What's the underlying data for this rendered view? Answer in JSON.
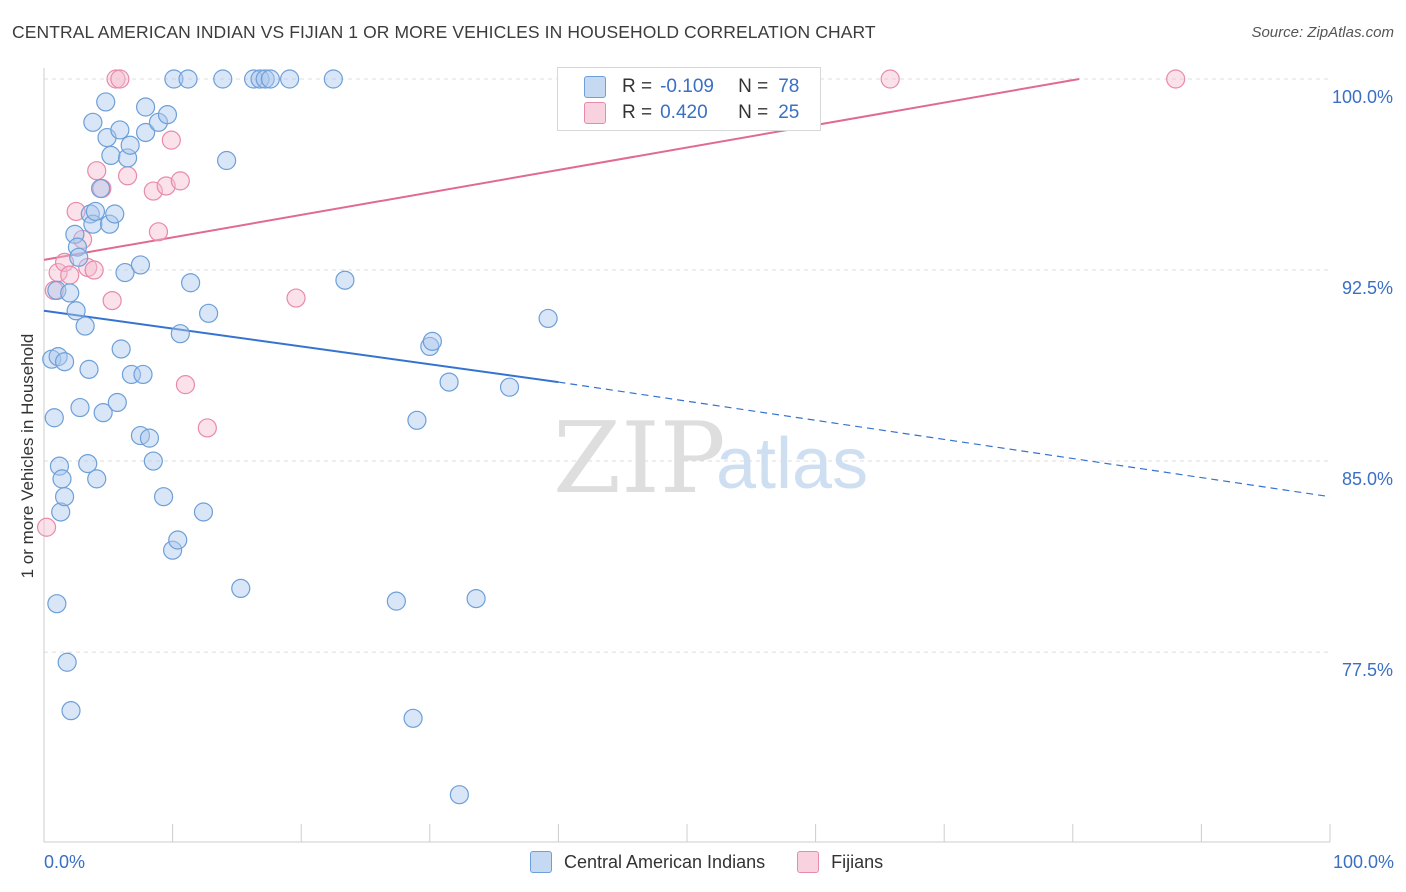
{
  "title": "CENTRAL AMERICAN INDIAN VS FIJIAN 1 OR MORE VEHICLES IN HOUSEHOLD CORRELATION CHART",
  "source": "Source: ZipAtlas.com",
  "watermark": {
    "zip": "ZIP",
    "atlas": "atlas"
  },
  "colors": {
    "blue_fill": "#aac8ee",
    "blue_stroke": "#6d9fd8",
    "blue_line": "#3573d0",
    "pink_fill": "#f4bcd0",
    "pink_stroke": "#e88aab",
    "pink_line": "#e06a92",
    "axis_text": "#3a6fc4",
    "grid": "#dddddd"
  },
  "legend_top": {
    "rows": [
      {
        "r_label": "R =",
        "r_value": "-0.109",
        "n_label": "N =",
        "n_value": "78"
      },
      {
        "r_label": "R =",
        "r_value": "0.420",
        "n_label": "N =",
        "n_value": "25"
      }
    ]
  },
  "legend_bottom": {
    "series1": "Central American Indians",
    "series2": "Fijians"
  },
  "chart_data": {
    "type": "scatter",
    "title": "CENTRAL AMERICAN INDIAN VS FIJIAN 1 OR MORE VEHICLES IN HOUSEHOLD CORRELATION CHART",
    "xlabel": "",
    "ylabel": "1 or more Vehicles in Household",
    "xlim": [
      0,
      100
    ],
    "ylim": [
      71.0,
      100.5
    ],
    "x_tick_labels": [
      "0.0%",
      "100.0%"
    ],
    "y_ticks": [
      77.5,
      85.0,
      92.5,
      100.0
    ],
    "y_tick_labels": [
      "77.5%",
      "85.0%",
      "92.5%",
      "100.0%"
    ],
    "series": [
      {
        "name": "Central American Indians",
        "r": -0.109,
        "n": 78,
        "trend": {
          "x0": 0,
          "y0": 90.9,
          "x1": 40,
          "y1": 88.1,
          "x_dash_end": 100,
          "y_dash_end": 83.6
        },
        "points": [
          [
            0.6,
            89.0
          ],
          [
            0.8,
            86.7
          ],
          [
            1.0,
            79.4
          ],
          [
            1.0,
            91.7
          ],
          [
            1.1,
            89.1
          ],
          [
            1.2,
            84.8
          ],
          [
            1.3,
            83.0
          ],
          [
            1.4,
            84.3
          ],
          [
            1.6,
            88.9
          ],
          [
            1.6,
            83.6
          ],
          [
            1.8,
            77.1
          ],
          [
            2.0,
            91.6
          ],
          [
            2.1,
            75.2
          ],
          [
            2.4,
            93.9
          ],
          [
            2.5,
            90.9
          ],
          [
            2.6,
            93.4
          ],
          [
            2.7,
            93.0
          ],
          [
            2.8,
            87.1
          ],
          [
            3.2,
            90.3
          ],
          [
            3.4,
            84.9
          ],
          [
            3.5,
            88.6
          ],
          [
            3.6,
            94.7
          ],
          [
            3.8,
            98.3
          ],
          [
            3.8,
            94.3
          ],
          [
            4.0,
            94.8
          ],
          [
            4.1,
            84.3
          ],
          [
            4.4,
            95.7
          ],
          [
            4.6,
            86.9
          ],
          [
            4.8,
            99.1
          ],
          [
            4.9,
            97.7
          ],
          [
            5.1,
            94.3
          ],
          [
            5.2,
            97.0
          ],
          [
            5.5,
            94.7
          ],
          [
            5.7,
            87.3
          ],
          [
            5.9,
            98.0
          ],
          [
            6.0,
            89.4
          ],
          [
            6.3,
            92.4
          ],
          [
            6.5,
            96.9
          ],
          [
            6.7,
            97.4
          ],
          [
            6.8,
            88.4
          ],
          [
            7.5,
            92.7
          ],
          [
            7.5,
            86.0
          ],
          [
            7.7,
            88.4
          ],
          [
            7.9,
            98.9
          ],
          [
            7.9,
            97.9
          ],
          [
            8.2,
            85.9
          ],
          [
            8.5,
            85.0
          ],
          [
            8.9,
            98.3
          ],
          [
            9.3,
            83.6
          ],
          [
            9.6,
            98.6
          ],
          [
            10.0,
            81.5
          ],
          [
            10.1,
            100.0
          ],
          [
            10.4,
            81.9
          ],
          [
            10.6,
            90.0
          ],
          [
            11.2,
            100.0
          ],
          [
            11.4,
            92.0
          ],
          [
            12.4,
            83.0
          ],
          [
            12.8,
            90.8
          ],
          [
            13.9,
            100.0
          ],
          [
            14.2,
            96.8
          ],
          [
            15.3,
            80.0
          ],
          [
            16.3,
            100.0
          ],
          [
            16.8,
            100.0
          ],
          [
            17.2,
            100.0
          ],
          [
            17.6,
            100.0
          ],
          [
            19.1,
            100.0
          ],
          [
            22.5,
            100.0
          ],
          [
            23.4,
            92.1
          ],
          [
            27.4,
            79.5
          ],
          [
            28.7,
            74.9
          ],
          [
            29.0,
            86.6
          ],
          [
            30.0,
            89.5
          ],
          [
            30.2,
            89.7
          ],
          [
            31.5,
            88.1
          ],
          [
            32.3,
            71.9
          ],
          [
            33.6,
            79.6
          ],
          [
            36.2,
            87.9
          ],
          [
            39.2,
            90.6
          ]
        ]
      },
      {
        "name": "Fijians",
        "r": 0.42,
        "n": 25,
        "trend": {
          "x0": 0,
          "y0": 92.9,
          "x1": 80.5,
          "y1": 100.0
        },
        "points": [
          [
            0.2,
            82.4
          ],
          [
            0.8,
            91.7
          ],
          [
            1.1,
            92.4
          ],
          [
            1.6,
            92.8
          ],
          [
            2.0,
            92.3
          ],
          [
            2.5,
            94.8
          ],
          [
            3.0,
            93.7
          ],
          [
            3.4,
            92.6
          ],
          [
            3.9,
            92.5
          ],
          [
            4.1,
            96.4
          ],
          [
            4.5,
            95.7
          ],
          [
            5.3,
            91.3
          ],
          [
            5.6,
            100.0
          ],
          [
            5.9,
            100.0
          ],
          [
            6.5,
            96.2
          ],
          [
            8.5,
            95.6
          ],
          [
            8.9,
            94.0
          ],
          [
            9.5,
            95.8
          ],
          [
            9.9,
            97.6
          ],
          [
            10.6,
            96.0
          ],
          [
            11.0,
            88.0
          ],
          [
            12.7,
            86.3
          ],
          [
            19.6,
            91.4
          ],
          [
            65.8,
            100.0
          ],
          [
            88.0,
            100.0
          ]
        ]
      }
    ]
  }
}
